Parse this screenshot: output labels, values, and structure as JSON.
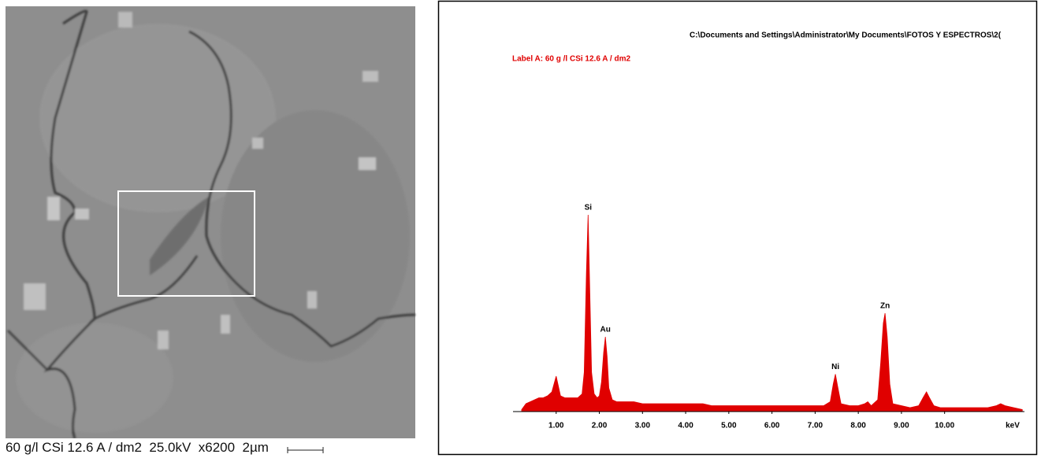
{
  "sem_image": {
    "caption": "60 g/l CSi 12.6 A / dm2  25.0kV  x6200  2µm"
  },
  "chart_data": {
    "type": "area",
    "title": "C:\\Documents and Settings\\Administrator\\My Documents\\FOTOS Y ESPECTROS\\2(",
    "subtitle": "Label A: 60 g /l CSi 12.6 A / dm2",
    "x_label": "keV",
    "color": "#e00000",
    "x": [
      0.2,
      0.3,
      0.4,
      0.5,
      0.6,
      0.7,
      0.8,
      0.9,
      0.95,
      1.0,
      1.05,
      1.1,
      1.2,
      1.3,
      1.4,
      1.5,
      1.6,
      1.65,
      1.7,
      1.74,
      1.78,
      1.82,
      1.88,
      1.95,
      2.0,
      2.05,
      2.1,
      2.14,
      2.18,
      2.22,
      2.3,
      2.4,
      2.6,
      2.8,
      3.0,
      3.2,
      3.4,
      3.6,
      3.8,
      4.0,
      4.2,
      4.4,
      4.6,
      4.8,
      5.0,
      5.2,
      5.4,
      5.6,
      5.8,
      6.0,
      6.2,
      6.4,
      6.6,
      6.8,
      7.0,
      7.2,
      7.35,
      7.42,
      7.47,
      7.52,
      7.6,
      7.8,
      8.0,
      8.15,
      8.22,
      8.3,
      8.45,
      8.52,
      8.58,
      8.62,
      8.67,
      8.73,
      8.8,
      9.0,
      9.2,
      9.4,
      9.5,
      9.58,
      9.65,
      9.75,
      9.9,
      10.2,
      10.5,
      10.8,
      11.0,
      11.2,
      11.3,
      11.4,
      11.6,
      11.8
    ],
    "values": [
      1,
      4,
      5,
      6,
      7,
      7,
      8,
      10,
      14,
      18,
      13,
      8,
      7,
      7,
      7,
      7,
      9,
      20,
      70,
      100,
      60,
      20,
      9,
      7,
      8,
      15,
      30,
      38,
      28,
      12,
      6,
      5,
      5,
      5,
      4,
      4,
      4,
      4,
      4,
      4,
      4,
      4,
      3,
      3,
      3,
      3,
      3,
      3,
      3,
      3,
      3,
      3,
      3,
      3,
      3,
      3,
      5,
      14,
      19,
      13,
      4,
      3,
      3,
      4,
      5,
      3,
      6,
      25,
      45,
      50,
      38,
      14,
      4,
      3,
      2,
      3,
      7,
      10,
      7,
      3,
      2,
      2,
      2,
      2,
      2,
      3,
      4,
      3,
      2,
      1
    ],
    "xlim": [
      0,
      11.85
    ],
    "ylim": [
      0,
      100
    ],
    "xticks": [
      {
        "value": 1,
        "label": "1.00"
      },
      {
        "value": 2,
        "label": "2.00"
      },
      {
        "value": 3,
        "label": "3.00"
      },
      {
        "value": 4,
        "label": "4.00"
      },
      {
        "value": 5,
        "label": "5.00"
      },
      {
        "value": 6,
        "label": "6.00"
      },
      {
        "value": 7,
        "label": "7.00"
      },
      {
        "value": 8,
        "label": "8.00"
      },
      {
        "value": 9,
        "label": "9.00"
      },
      {
        "value": 10,
        "label": "10.00"
      }
    ],
    "annotations": [
      {
        "text": "Si",
        "x": 1.74,
        "y": 100
      },
      {
        "text": "Au",
        "x": 2.14,
        "y": 38
      },
      {
        "text": "Ni",
        "x": 7.47,
        "y": 19
      },
      {
        "text": "Zn",
        "x": 8.62,
        "y": 50
      }
    ]
  }
}
